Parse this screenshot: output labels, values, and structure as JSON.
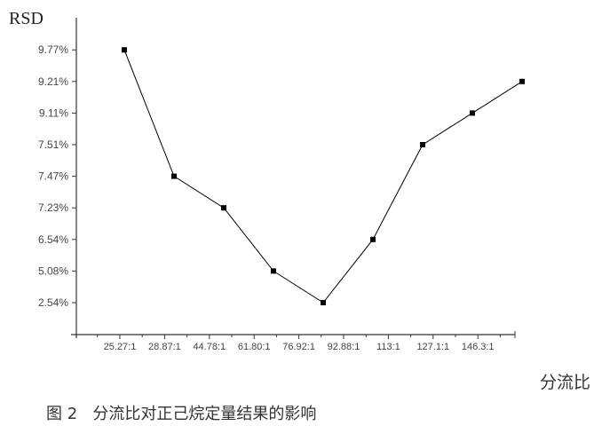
{
  "chart_data": {
    "type": "line",
    "ylabel": "RSD",
    "xlabel": "分流比",
    "caption": "图 2   分流比对正己烷定量结果的影响",
    "categories": [
      "25.27:1",
      "28.87:1",
      "44.78:1",
      "61.80:1",
      "76.92:1",
      "92.88:1",
      "113:1",
      "127.1:1",
      "146.3:1"
    ],
    "y_tick_labels": [
      "2.54%",
      "5.08%",
      "6.54%",
      "7.23%",
      "7.47%",
      "7.51%",
      "9.11%",
      "9.21%",
      "9.77%"
    ],
    "y_scale": "ordinal (evenly spaced tick labels)",
    "values": [
      9.77,
      7.47,
      7.23,
      5.08,
      2.54,
      6.54,
      7.51,
      9.11,
      9.21
    ],
    "marker": "square",
    "line_color": "#000000",
    "grid": false
  }
}
